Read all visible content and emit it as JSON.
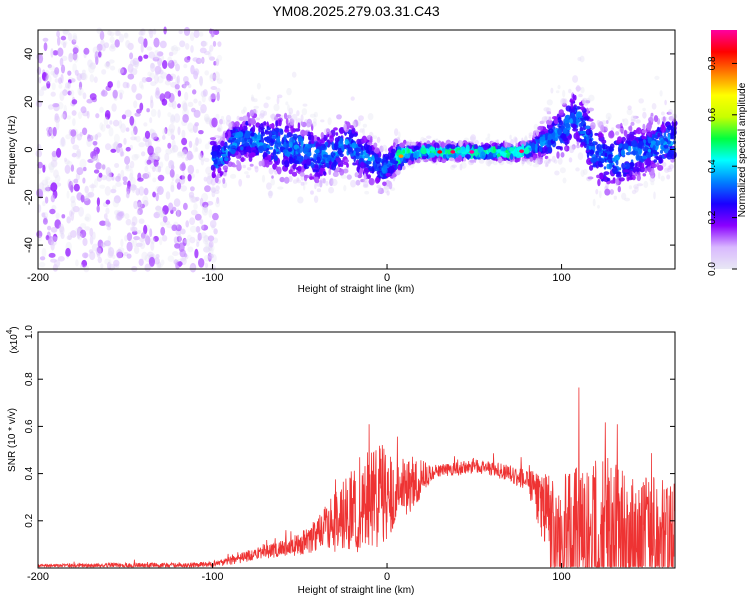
{
  "title": "YM08.2025.279.03.31.C43",
  "chart_data": [
    {
      "type": "heatmap",
      "title": "YM08.2025.279.03.31.C43",
      "xlabel": "Height of straight line (km)",
      "ylabel": "Frequency (Hz)",
      "xlim": [
        -200,
        165
      ],
      "ylim": [
        -50,
        50
      ],
      "x_ticks": [
        -200,
        -100,
        0,
        100
      ],
      "y_ticks": [
        -40,
        -20,
        0,
        20,
        40
      ],
      "colorbar": {
        "label": "Normalized spectral amplitude",
        "range": [
          0.0,
          0.93
        ],
        "ticks": [
          0.0,
          0.2,
          0.4,
          0.6,
          0.8
        ],
        "tick_labels": [
          "0.0",
          "0.2",
          "0.4",
          "0.6",
          "0.8"
        ],
        "colormap": [
          "#e8e8f4",
          "#d9b8ff",
          "#8a00ff",
          "#1a00ff",
          "#0080ff",
          "#00ffff",
          "#00ff40",
          "#c8ff00",
          "#ffff00",
          "#ff8000",
          "#ff0000",
          "#ff00a0"
        ]
      },
      "description_points": {
        "noise_region_x": [
          -200,
          -95
        ],
        "band_centers": [
          [
            -95,
            -4
          ],
          [
            -88,
            3
          ],
          [
            -80,
            5
          ],
          [
            -70,
            3
          ],
          [
            -60,
            2
          ],
          [
            -50,
            0
          ],
          [
            -40,
            -3
          ],
          [
            -30,
            -1
          ],
          [
            -22,
            2
          ],
          [
            -15,
            -2
          ],
          [
            -8,
            -5
          ],
          [
            -2,
            -8
          ],
          [
            5,
            -4
          ],
          [
            10,
            -2
          ],
          [
            20,
            -1
          ],
          [
            40,
            -1
          ],
          [
            60,
            -1
          ],
          [
            75,
            -1
          ],
          [
            82,
            0
          ],
          [
            88,
            3
          ],
          [
            95,
            5
          ],
          [
            102,
            8
          ],
          [
            108,
            14
          ],
          [
            112,
            10
          ],
          [
            118,
            0
          ],
          [
            125,
            -5
          ],
          [
            135,
            -3
          ],
          [
            145,
            -1
          ],
          [
            155,
            2
          ],
          [
            165,
            4
          ]
        ],
        "band_half_width": [
          [
            -95,
            8
          ],
          [
            -60,
            12
          ],
          [
            -30,
            10
          ],
          [
            -10,
            9
          ],
          [
            5,
            6
          ],
          [
            15,
            3
          ],
          [
            80,
            3
          ],
          [
            95,
            9
          ],
          [
            110,
            12
          ],
          [
            130,
            12
          ],
          [
            165,
            10
          ]
        ],
        "peak_region_x": [
          5,
          82
        ]
      }
    },
    {
      "type": "line",
      "xlabel": "Height of straight line (km)",
      "ylabel": "SNR (10 * v/v)",
      "yscale_label": "(x10",
      "yscale_exp": "4",
      "yscale_suffix": ")",
      "xlim": [
        -200,
        165
      ],
      "ylim": [
        0,
        1.0
      ],
      "x_ticks": [
        -200,
        -100,
        0,
        100
      ],
      "y_ticks": [
        0.2,
        0.4,
        0.6,
        0.8,
        1.0
      ],
      "y_tick_labels": [
        "0.2",
        "0.4",
        "0.6",
        "0.8",
        "1.0"
      ],
      "color": "#ee3333",
      "series": [
        {
          "name": "SNR",
          "envelope": {
            "x": [
              -200,
              -150,
              -120,
              -100,
              -90,
              -80,
              -70,
              -60,
              -50,
              -40,
              -35,
              -30,
              -25,
              -20,
              -15,
              -10,
              -5,
              0,
              5,
              10,
              15,
              20,
              25,
              30,
              40,
              50,
              60,
              70,
              80,
              90,
              95,
              100,
              105,
              110,
              115,
              120,
              125,
              130,
              135,
              140,
              145,
              150,
              155,
              160,
              165
            ],
            "base": [
              0.01,
              0.01,
              0.01,
              0.015,
              0.03,
              0.05,
              0.07,
              0.08,
              0.1,
              0.14,
              0.17,
              0.2,
              0.22,
              0.25,
              0.27,
              0.28,
              0.3,
              0.32,
              0.33,
              0.34,
              0.35,
              0.38,
              0.4,
              0.41,
              0.42,
              0.43,
              0.42,
              0.4,
              0.37,
              0.25,
              0.15,
              0.12,
              0.12,
              0.13,
              0.13,
              0.12,
              0.12,
              0.12,
              0.12,
              0.12,
              0.12,
              0.12,
              0.12,
              0.12,
              0.12
            ],
            "amp": [
              0.01,
              0.02,
              0.02,
              0.02,
              0.03,
              0.04,
              0.05,
              0.06,
              0.08,
              0.12,
              0.16,
              0.22,
              0.25,
              0.3,
              0.35,
              0.38,
              0.38,
              0.35,
              0.25,
              0.2,
              0.18,
              0.14,
              0.06,
              0.05,
              0.05,
              0.05,
              0.05,
              0.06,
              0.08,
              0.25,
              0.4,
              0.45,
              0.5,
              0.55,
              0.58,
              0.62,
              0.6,
              0.55,
              0.5,
              0.45,
              0.45,
              0.45,
              0.45,
              0.45,
              0.45
            ]
          }
        }
      ]
    }
  ]
}
